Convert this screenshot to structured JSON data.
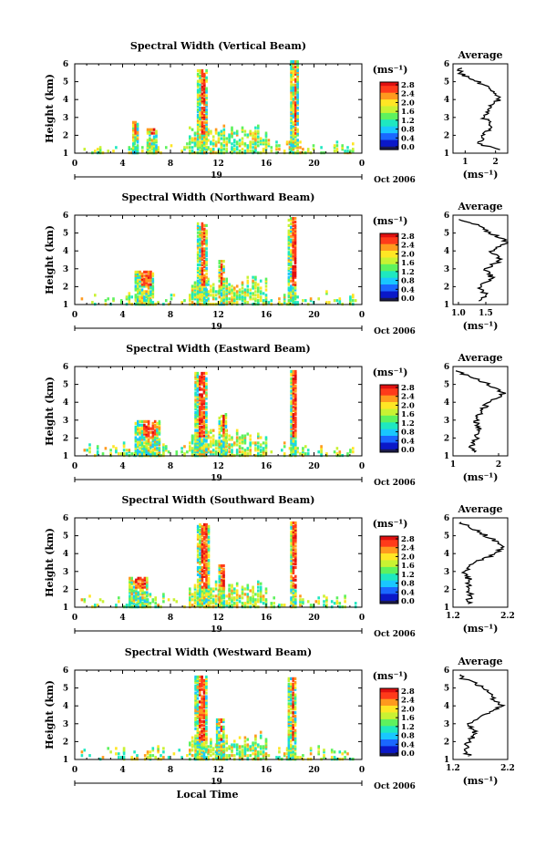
{
  "xlabel": "Local Time",
  "time_ticks": [
    "0",
    "4",
    "8",
    "12",
    "16",
    "20",
    "0"
  ],
  "day_label": "19",
  "date_label": "Oct 2006",
  "colorbar_ticks": [
    "0.0",
    "0.4",
    "0.8",
    "1.2",
    "1.6",
    "2.0",
    "2.4",
    "2.8"
  ],
  "unit_label": "(ms⁻¹)",
  "average_title": "Average",
  "average_xlabel": "(ms⁻¹)",
  "ylabel": "Height (km)",
  "height_ticks": [
    "1",
    "2",
    "3",
    "4",
    "5",
    "6"
  ],
  "colors": {
    "colormap": [
      "#1a1a4d",
      "#0a18c8",
      "#1a68ff",
      "#19c7ff",
      "#1ee8c0",
      "#5ef25e",
      "#c9f233",
      "#ffe625",
      "#ff9a1e",
      "#ff3b1a",
      "#e01010"
    ]
  },
  "chart_data": [
    {
      "type": "heatmap",
      "title": "Spectral Width (Vertical Beam)",
      "xlabel": "",
      "ylabel": "Height (km)",
      "x_range_hours": [
        0,
        24
      ],
      "y_range_km": [
        1,
        6
      ],
      "colorbar_range": [
        0.0,
        2.8
      ],
      "colorbar_units": "(ms⁻¹)",
      "features": [
        {
          "t_start": 10.2,
          "t_end": 11.0,
          "h_top": 5.7,
          "max_width": 2.8
        },
        {
          "t_start": 18.0,
          "t_end": 18.6,
          "h_top": 6.2,
          "max_width": 2.8
        },
        {
          "t_start": 4.8,
          "t_end": 5.2,
          "h_top": 2.9,
          "max_width": 2.6
        },
        {
          "t_start": 6.0,
          "t_end": 6.8,
          "h_top": 2.5,
          "max_width": 2.6
        }
      ],
      "average": {
        "xlim": [
          0.6,
          2.4
        ],
        "xticks": [
          "1",
          "2"
        ],
        "heights": [
          1.2,
          1.5,
          2.0,
          2.5,
          3.0,
          3.5,
          4.0,
          4.5,
          5.0,
          5.5,
          5.8
        ],
        "values": [
          2.2,
          1.5,
          1.6,
          1.9,
          1.6,
          1.8,
          2.1,
          1.9,
          1.4,
          0.8,
          0.9
        ]
      }
    },
    {
      "type": "heatmap",
      "title": "Spectral Width (Northward Beam)",
      "xlabel": "",
      "ylabel": "Height (km)",
      "x_range_hours": [
        0,
        24
      ],
      "y_range_km": [
        1,
        6
      ],
      "colorbar_range": [
        0.0,
        2.8
      ],
      "colorbar_units": "(ms⁻¹)",
      "features": [
        {
          "t_start": 10.2,
          "t_end": 11.0,
          "h_top": 5.6,
          "max_width": 2.8
        },
        {
          "t_start": 12.0,
          "t_end": 12.4,
          "h_top": 3.6,
          "max_width": 2.8
        },
        {
          "t_start": 17.8,
          "t_end": 18.5,
          "h_top": 5.9,
          "max_width": 2.8
        },
        {
          "t_start": 5.0,
          "t_end": 6.5,
          "h_top": 3.0,
          "max_width": 2.6
        }
      ],
      "average": {
        "xlim": [
          0.9,
          1.9
        ],
        "xticks": [
          "1.0",
          "1.5"
        ],
        "heights": [
          1.2,
          1.5,
          2.0,
          2.5,
          3.0,
          3.5,
          4.0,
          4.5,
          5.0,
          5.5,
          5.8
        ],
        "values": [
          1.4,
          1.5,
          1.4,
          1.6,
          1.5,
          1.8,
          1.6,
          1.9,
          1.6,
          1.3,
          0.95
        ]
      }
    },
    {
      "type": "heatmap",
      "title": "Spectral Width (Eastward Beam)",
      "xlabel": "",
      "ylabel": "Height (km)",
      "x_range_hours": [
        0,
        24
      ],
      "y_range_km": [
        1,
        6
      ],
      "colorbar_range": [
        0.0,
        2.8
      ],
      "colorbar_units": "(ms⁻¹)",
      "features": [
        {
          "t_start": 10.0,
          "t_end": 11.0,
          "h_top": 5.7,
          "max_width": 2.8
        },
        {
          "t_start": 12.0,
          "t_end": 12.6,
          "h_top": 3.5,
          "max_width": 2.8
        },
        {
          "t_start": 18.0,
          "t_end": 18.5,
          "h_top": 5.8,
          "max_width": 2.8
        },
        {
          "t_start": 5.0,
          "t_end": 7.0,
          "h_top": 3.1,
          "max_width": 2.6
        }
      ],
      "average": {
        "xlim": [
          1.0,
          2.2
        ],
        "xticks": [
          "1",
          "2"
        ],
        "heights": [
          1.2,
          1.5,
          2.0,
          2.5,
          3.0,
          3.5,
          4.0,
          4.5,
          5.0,
          5.5,
          5.8
        ],
        "values": [
          1.5,
          1.4,
          1.5,
          1.6,
          1.5,
          1.6,
          1.8,
          2.1,
          1.8,
          1.3,
          1.0
        ]
      }
    },
    {
      "type": "heatmap",
      "title": "Spectral Width (Southward Beam)",
      "xlabel": "",
      "ylabel": "Height (km)",
      "x_range_hours": [
        0,
        24
      ],
      "y_range_km": [
        1,
        6
      ],
      "colorbar_range": [
        0.0,
        2.8
      ],
      "colorbar_units": "(ms⁻¹)",
      "features": [
        {
          "t_start": 10.2,
          "t_end": 11.2,
          "h_top": 5.7,
          "max_width": 2.8
        },
        {
          "t_start": 12.0,
          "t_end": 12.5,
          "h_top": 3.5,
          "max_width": 2.8
        },
        {
          "t_start": 18.0,
          "t_end": 18.5,
          "h_top": 5.8,
          "max_width": 2.8
        },
        {
          "t_start": 4.5,
          "t_end": 6.0,
          "h_top": 2.8,
          "max_width": 2.6
        }
      ],
      "average": {
        "xlim": [
          1.2,
          2.2
        ],
        "xticks": [
          "1.2",
          "2.2"
        ],
        "heights": [
          1.2,
          1.5,
          2.0,
          2.5,
          3.0,
          3.5,
          4.0,
          4.5,
          5.0,
          5.5,
          5.8
        ],
        "values": [
          1.5,
          1.5,
          1.5,
          1.5,
          1.4,
          1.6,
          2.0,
          2.1,
          1.8,
          1.5,
          1.3
        ]
      }
    },
    {
      "type": "heatmap",
      "title": "Spectral Width (Westward Beam)",
      "xlabel": "Local Time",
      "ylabel": "Height (km)",
      "x_range_hours": [
        0,
        24
      ],
      "y_range_km": [
        1,
        6
      ],
      "colorbar_range": [
        0.0,
        2.8
      ],
      "colorbar_units": "(ms⁻¹)",
      "features": [
        {
          "t_start": 10.0,
          "t_end": 11.0,
          "h_top": 5.7,
          "max_width": 2.8
        },
        {
          "t_start": 11.8,
          "t_end": 12.4,
          "h_top": 3.4,
          "max_width": 2.8
        },
        {
          "t_start": 17.8,
          "t_end": 18.4,
          "h_top": 5.6,
          "max_width": 2.8
        }
      ],
      "average": {
        "xlim": [
          1.2,
          2.2
        ],
        "xticks": [
          "1.2",
          "2.2"
        ],
        "heights": [
          1.2,
          1.5,
          2.0,
          2.5,
          3.0,
          3.5,
          4.0,
          4.5,
          5.0,
          5.5,
          5.8
        ],
        "values": [
          1.5,
          1.4,
          1.5,
          1.6,
          1.5,
          1.8,
          2.1,
          1.9,
          1.8,
          1.4,
          1.3
        ]
      }
    }
  ]
}
